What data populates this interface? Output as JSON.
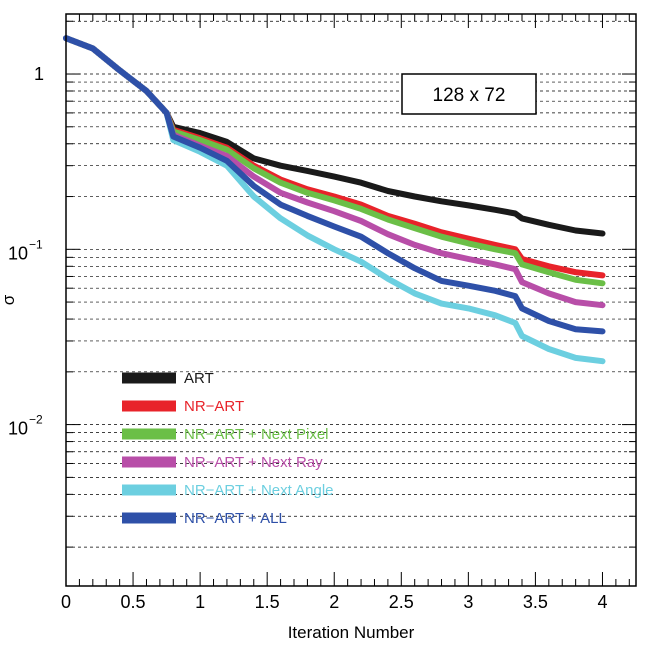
{
  "chart_data": {
    "type": "line",
    "xlabel": "Iteration Number",
    "ylabel": "σ",
    "xlim": [
      0,
      4.25
    ],
    "ylim": [
      0.0012,
      2.2
    ],
    "yscale": "log",
    "grid": true,
    "legend_position": "lower-left",
    "annotation": "128 x 72",
    "x_ticks": [
      {
        "value": 0,
        "label": "0"
      },
      {
        "value": 0.5,
        "label": "0.5"
      },
      {
        "value": 1,
        "label": "1"
      },
      {
        "value": 1.5,
        "label": "1.5"
      },
      {
        "value": 2,
        "label": "2"
      },
      {
        "value": 2.5,
        "label": "2.5"
      },
      {
        "value": 3,
        "label": "3"
      },
      {
        "value": 3.5,
        "label": "3.5"
      },
      {
        "value": 4,
        "label": "4"
      }
    ],
    "y_ticks": [
      {
        "value": 1,
        "base": "1",
        "exp": ""
      },
      {
        "value": 0.1,
        "base": "10",
        "exp": "−1"
      },
      {
        "value": 0.01,
        "base": "10",
        "exp": "−2"
      }
    ],
    "series": [
      {
        "name": "ART",
        "color": "#1a1a1a",
        "x": [
          0,
          0.2,
          0.4,
          0.6,
          0.75,
          0.8,
          1.0,
          1.2,
          1.4,
          1.6,
          1.8,
          2.0,
          2.2,
          2.4,
          2.6,
          2.8,
          3.0,
          3.2,
          3.35,
          3.4,
          3.6,
          3.8,
          4.0
        ],
        "y": [
          1.6,
          1.4,
          1.05,
          0.8,
          0.6,
          0.5,
          0.46,
          0.41,
          0.33,
          0.3,
          0.28,
          0.26,
          0.24,
          0.215,
          0.2,
          0.188,
          0.178,
          0.168,
          0.16,
          0.15,
          0.138,
          0.128,
          0.123
        ]
      },
      {
        "name": "NR−ART",
        "color": "#e8232a",
        "x": [
          0,
          0.2,
          0.4,
          0.6,
          0.75,
          0.8,
          1.0,
          1.2,
          1.4,
          1.6,
          1.8,
          2.0,
          2.2,
          2.4,
          2.6,
          2.8,
          3.0,
          3.2,
          3.35,
          3.4,
          3.6,
          3.8,
          4.0
        ],
        "y": [
          1.6,
          1.4,
          1.05,
          0.8,
          0.6,
          0.48,
          0.43,
          0.38,
          0.3,
          0.25,
          0.22,
          0.2,
          0.18,
          0.155,
          0.14,
          0.125,
          0.115,
          0.106,
          0.1,
          0.088,
          0.08,
          0.074,
          0.071
        ]
      },
      {
        "name": "NR−ART + Next Pixel",
        "color": "#6bbf47",
        "x": [
          0,
          0.2,
          0.4,
          0.6,
          0.75,
          0.8,
          1.0,
          1.2,
          1.4,
          1.6,
          1.8,
          2.0,
          2.2,
          2.4,
          2.6,
          2.8,
          3.0,
          3.2,
          3.35,
          3.4,
          3.6,
          3.8,
          4.0
        ],
        "y": [
          1.6,
          1.4,
          1.05,
          0.8,
          0.6,
          0.47,
          0.42,
          0.37,
          0.29,
          0.24,
          0.21,
          0.19,
          0.17,
          0.148,
          0.132,
          0.118,
          0.108,
          0.1,
          0.095,
          0.082,
          0.074,
          0.067,
          0.064
        ]
      },
      {
        "name": "NR−ART + Next Ray",
        "color": "#b84ea8",
        "x": [
          0,
          0.2,
          0.4,
          0.6,
          0.75,
          0.8,
          1.0,
          1.2,
          1.4,
          1.6,
          1.8,
          2.0,
          2.2,
          2.4,
          2.6,
          2.8,
          3.0,
          3.2,
          3.35,
          3.4,
          3.6,
          3.8,
          4.0
        ],
        "y": [
          1.6,
          1.4,
          1.05,
          0.8,
          0.6,
          0.45,
          0.39,
          0.34,
          0.26,
          0.21,
          0.185,
          0.165,
          0.145,
          0.122,
          0.106,
          0.095,
          0.088,
          0.082,
          0.077,
          0.065,
          0.056,
          0.05,
          0.048
        ]
      },
      {
        "name": "NR−ART + Next Angle",
        "color": "#6ccfe0",
        "x": [
          0,
          0.2,
          0.4,
          0.6,
          0.75,
          0.8,
          1.0,
          1.2,
          1.4,
          1.6,
          1.8,
          2.0,
          2.2,
          2.4,
          2.6,
          2.8,
          3.0,
          3.2,
          3.35,
          3.4,
          3.6,
          3.8,
          4.0
        ],
        "y": [
          1.6,
          1.4,
          1.05,
          0.8,
          0.6,
          0.42,
          0.36,
          0.3,
          0.2,
          0.15,
          0.12,
          0.1,
          0.085,
          0.068,
          0.056,
          0.049,
          0.046,
          0.042,
          0.038,
          0.032,
          0.027,
          0.024,
          0.023
        ]
      },
      {
        "name": "NR−ART + ALL",
        "color": "#2e50a8",
        "x": [
          0,
          0.2,
          0.4,
          0.6,
          0.75,
          0.8,
          1.0,
          1.2,
          1.4,
          1.6,
          1.8,
          2.0,
          2.2,
          2.4,
          2.6,
          2.8,
          3.0,
          3.2,
          3.35,
          3.4,
          3.6,
          3.8,
          4.0
        ],
        "y": [
          1.6,
          1.4,
          1.05,
          0.8,
          0.6,
          0.44,
          0.38,
          0.32,
          0.23,
          0.18,
          0.155,
          0.135,
          0.118,
          0.095,
          0.078,
          0.066,
          0.062,
          0.058,
          0.054,
          0.046,
          0.039,
          0.035,
          0.034
        ]
      }
    ]
  }
}
